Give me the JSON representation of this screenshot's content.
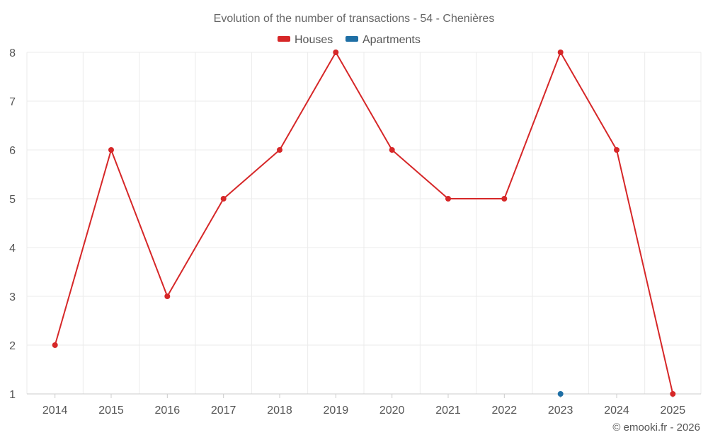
{
  "chart_data": {
    "type": "line",
    "title": "Evolution of the number of transactions - 54 - Chenières",
    "categories": [
      "2014",
      "2015",
      "2016",
      "2017",
      "2018",
      "2019",
      "2020",
      "2021",
      "2022",
      "2023",
      "2024",
      "2025"
    ],
    "series": [
      {
        "name": "Houses",
        "color": "#d62728",
        "values": [
          2,
          6,
          3,
          5,
          6,
          8,
          6,
          5,
          5,
          8,
          6,
          1
        ]
      },
      {
        "name": "Apartments",
        "color": "#1f6fa5",
        "values": [
          null,
          null,
          null,
          null,
          null,
          null,
          null,
          null,
          null,
          1,
          null,
          null
        ]
      }
    ],
    "yticks": [
      "1",
      "2",
      "3",
      "4",
      "5",
      "6",
      "7",
      "8"
    ],
    "ylim": [
      1,
      8
    ],
    "xlabel": "",
    "ylabel": "",
    "grid": true,
    "legend_position": "top-center"
  },
  "credit": "© emooki.fr - 2026",
  "colors": {
    "grid": "#ebebeb",
    "axis": "#cccccc"
  }
}
